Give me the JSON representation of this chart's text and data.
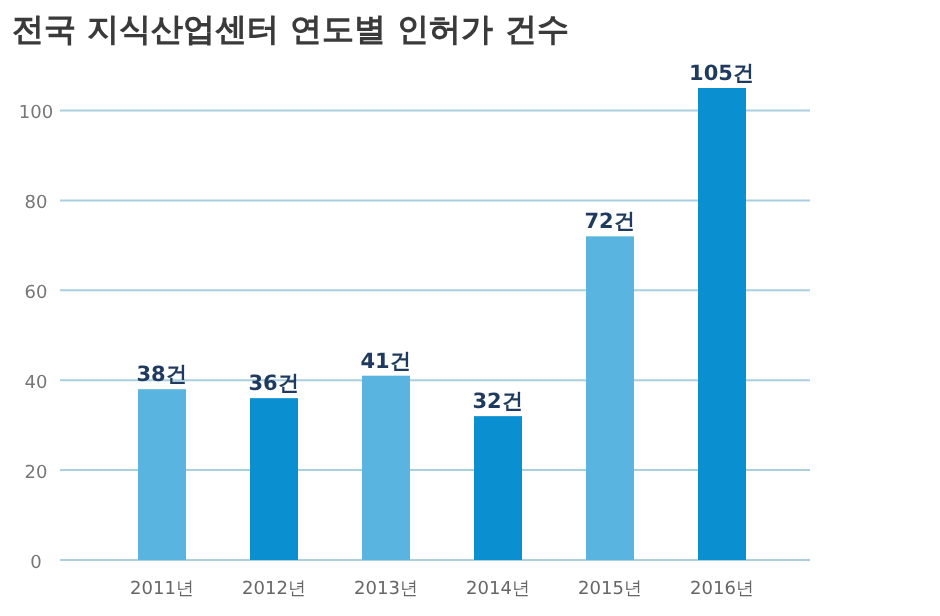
{
  "chart_data": {
    "type": "bar",
    "title": "전국 지식산업센터 연도별 인허가 건수",
    "categories": [
      "2011년",
      "2012년",
      "2013년",
      "2014년",
      "2015년",
      "2016년"
    ],
    "values": [
      38,
      36,
      41,
      32,
      72,
      105
    ],
    "colors": [
      "#5ab4e0",
      "#0a8fd0",
      "#5ab4e0",
      "#0a8fd0",
      "#5ab4e0",
      "#0a8fd0"
    ],
    "value_labels": [
      "38건",
      "36건",
      "41건",
      "32건",
      "72건",
      "105건"
    ],
    "ylim": [
      0,
      105
    ],
    "yticks": [
      0,
      20,
      40,
      60,
      80,
      100
    ],
    "grid": "y"
  }
}
